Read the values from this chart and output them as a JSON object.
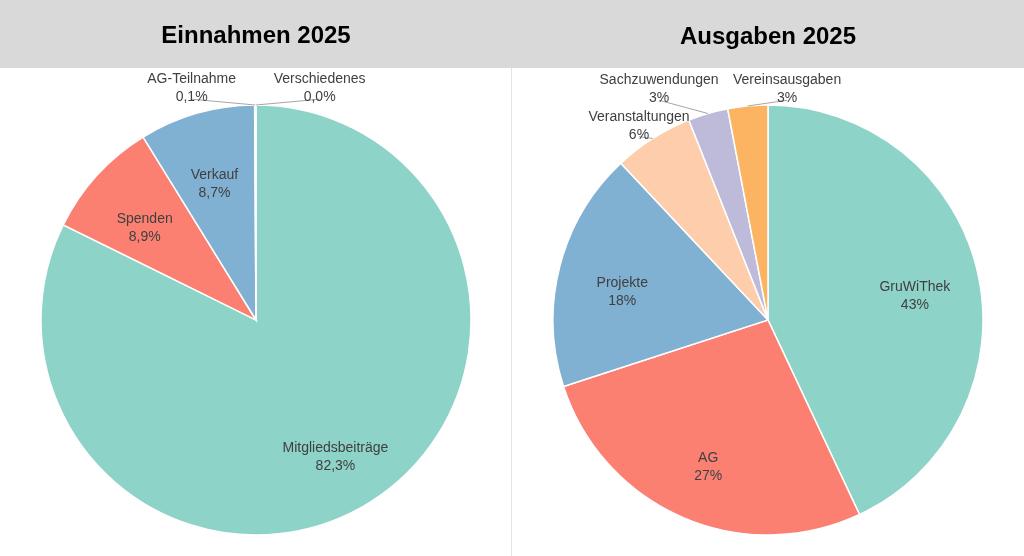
{
  "chart_data": [
    {
      "type": "pie",
      "title": "Einnahmen 2025",
      "categories": [
        "Mitgliedsbeiträge",
        "Spenden",
        "Verkauf",
        "AG-Teilnahme",
        "Verschiedenes"
      ],
      "values": [
        82.3,
        8.9,
        8.7,
        0.1,
        0.0
      ],
      "value_labels": [
        "82,3%",
        "8,9%",
        "8,7%",
        "0,1%",
        "0,0%"
      ],
      "colors": [
        "#8dd3c7",
        "#fb8072",
        "#80b1d3",
        "#bebada",
        "#fdb462"
      ]
    },
    {
      "type": "pie",
      "title": "Ausgaben 2025",
      "categories": [
        "GruWiThek",
        "AG",
        "Projekte",
        "Veranstaltungen",
        "Sachzuwendungen",
        "Vereinsausgaben"
      ],
      "values": [
        43,
        27,
        18,
        6,
        3,
        3
      ],
      "value_labels": [
        "43%",
        "27%",
        "18%",
        "6%",
        "3%",
        "3%"
      ],
      "colors": [
        "#8dd3c7",
        "#fb8072",
        "#80b1d3",
        "#fdcdac",
        "#bebada",
        "#fdb462"
      ]
    }
  ]
}
